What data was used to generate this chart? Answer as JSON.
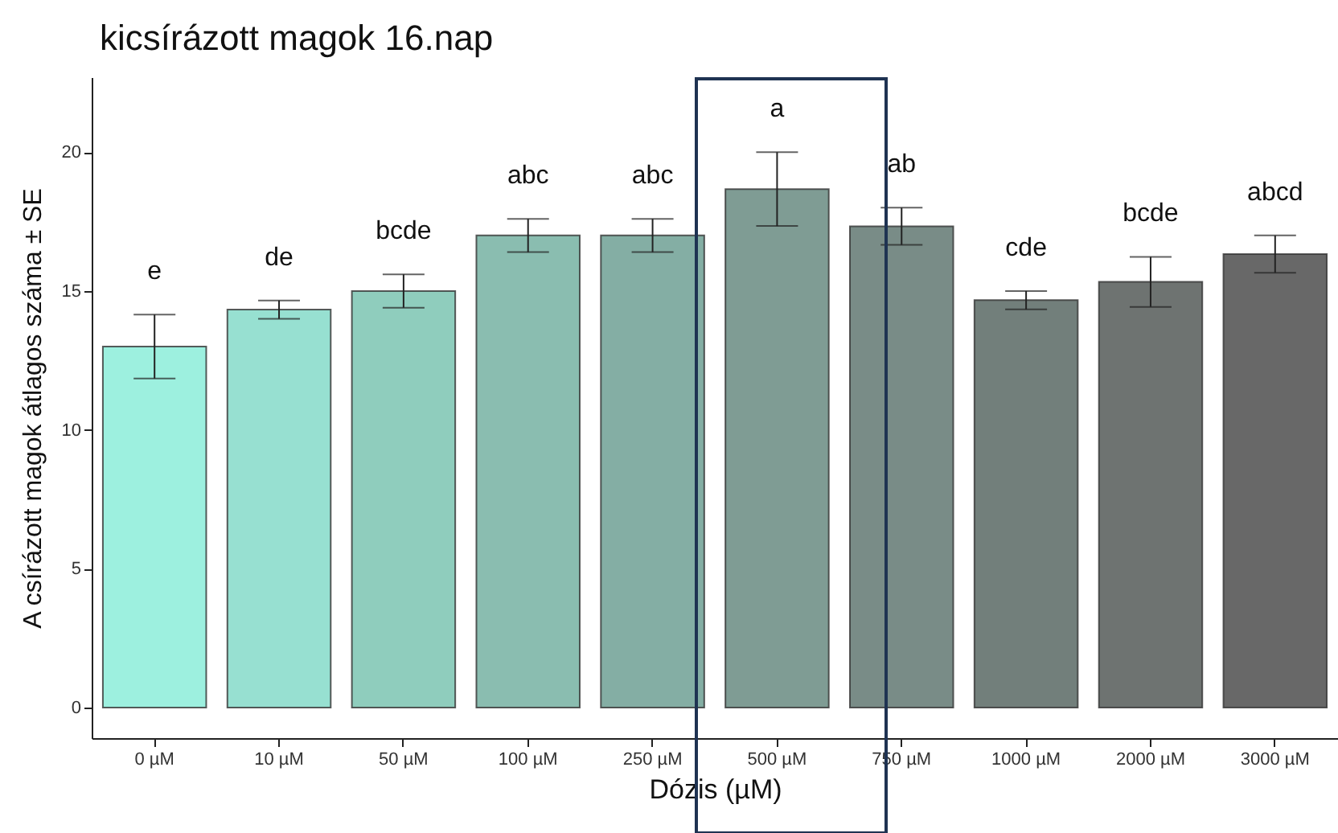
{
  "chart_data": {
    "type": "bar",
    "title": "kicsírázott magok 16.nap",
    "xlabel": "Dózis (µM)",
    "ylabel": "A csírázott magok átlagos száma ± SE",
    "categories": [
      "0 µM",
      "10 µM",
      "50 µM",
      "100 µM",
      "250 µM",
      "500 µM",
      "750 µM",
      "1000 µM",
      "2000 µM",
      "3000 µM"
    ],
    "values": [
      13,
      14.33,
      15,
      17,
      17,
      18.67,
      17.33,
      14.67,
      15.33,
      16.33
    ],
    "errors": [
      1.15,
      0.33,
      0.6,
      0.6,
      0.6,
      1.33,
      0.67,
      0.33,
      0.9,
      0.67
    ],
    "colors": [
      "#9df0df",
      "#97e0d1",
      "#8fcdbd",
      "#8abdb0",
      "#84aea4",
      "#7f9c94",
      "#798c87",
      "#727f7b",
      "#6e7371",
      "#686868"
    ],
    "ylim": [
      -1.1,
      22.7
    ],
    "yticks": [
      0,
      5,
      10,
      15,
      20
    ],
    "grid": false,
    "annotations": [
      "e",
      "de",
      "bcde",
      "abc",
      "abc",
      "a",
      "ab",
      "cde",
      "bcde",
      "abcd"
    ]
  }
}
